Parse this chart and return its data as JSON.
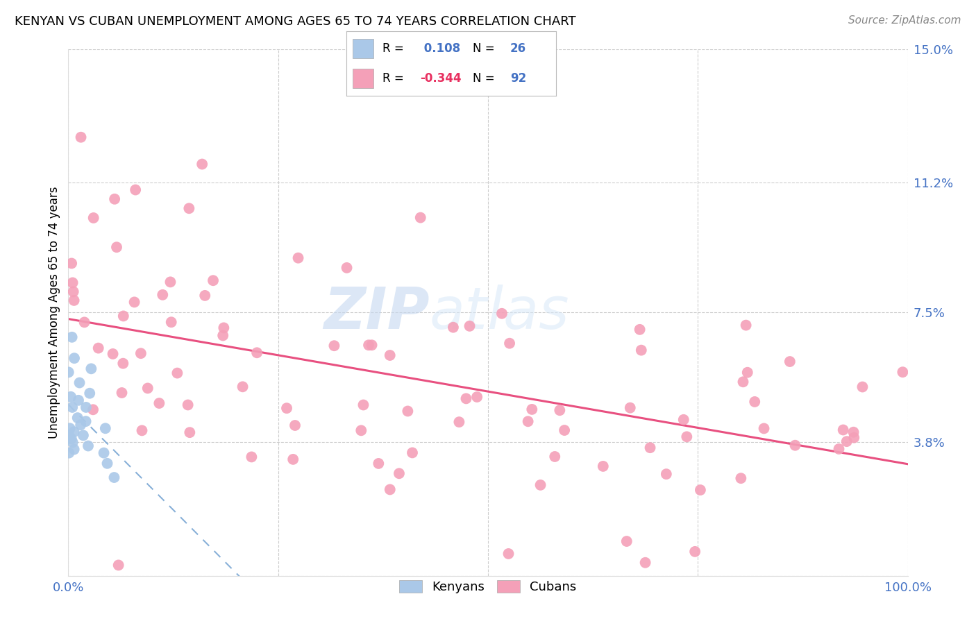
{
  "title": "KENYAN VS CUBAN UNEMPLOYMENT AMONG AGES 65 TO 74 YEARS CORRELATION CHART",
  "source": "Source: ZipAtlas.com",
  "ylabel": "Unemployment Among Ages 65 to 74 years",
  "xlim": [
    0,
    100
  ],
  "ylim": [
    0,
    15
  ],
  "ytick_vals": [
    0,
    3.8,
    7.5,
    11.2,
    15.0
  ],
  "ytick_labels": [
    "",
    "3.8%",
    "7.5%",
    "11.2%",
    "15.0%"
  ],
  "xtick_vals": [
    0,
    100
  ],
  "xtick_labels": [
    "0.0%",
    "100.0%"
  ],
  "kenyan_R": 0.108,
  "kenyan_N": 26,
  "cuban_R": -0.344,
  "cuban_N": 92,
  "kenyan_color": "#aac8e8",
  "cuban_color": "#f4a0b8",
  "kenyan_trend_color": "#88b0d8",
  "cuban_trend_color": "#e85080",
  "watermark_zip": "ZIP",
  "watermark_atlas": "atlas",
  "grid_color": "#cccccc",
  "tick_color": "#4472c4",
  "title_fontsize": 13,
  "source_fontsize": 11,
  "axis_tick_fontsize": 13,
  "ylabel_fontsize": 12
}
